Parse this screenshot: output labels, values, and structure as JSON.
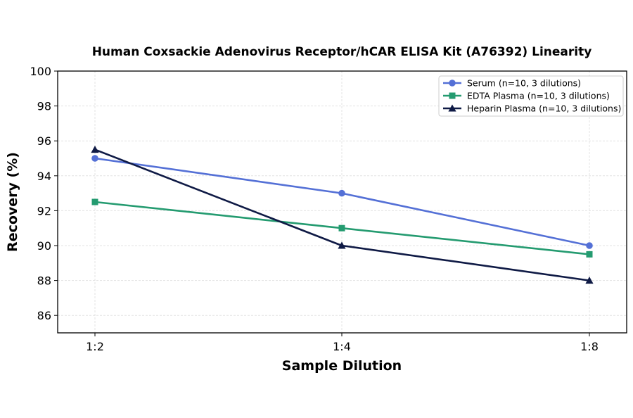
{
  "chart_data": {
    "type": "line",
    "title": "Human Coxsackie Adenovirus Receptor/hCAR ELISA Kit (A76392) Linearity",
    "xlabel": "Sample Dilution",
    "ylabel": "Recovery (%)",
    "categories": [
      "1:2",
      "1:4",
      "1:8"
    ],
    "ylim": [
      85,
      100
    ],
    "yticks": [
      86,
      88,
      90,
      92,
      94,
      96,
      98,
      100
    ],
    "grid": true,
    "legend_position": "top-right",
    "series": [
      {
        "name": "Serum (n=10, 3 dilutions)",
        "values": [
          95,
          93,
          90
        ],
        "color": "#5470d6",
        "marker": "circle"
      },
      {
        "name": "EDTA Plasma (n=10, 3 dilutions)",
        "values": [
          92.5,
          91,
          89.5
        ],
        "color": "#249b70",
        "marker": "square"
      },
      {
        "name": "Heparin Plasma (n=10, 3 dilutions)",
        "values": [
          95.5,
          90,
          88
        ],
        "color": "#0f1a45",
        "marker": "triangle"
      }
    ]
  }
}
